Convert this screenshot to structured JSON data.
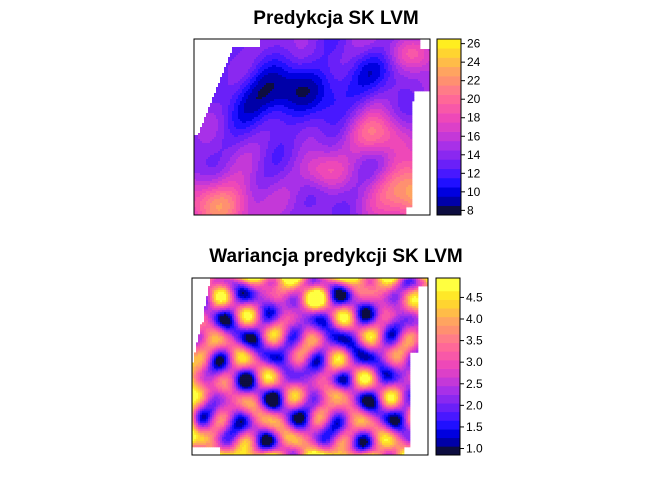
{
  "chart_data": [
    {
      "type": "heatmap",
      "title": "Predykcja SK LVM",
      "xlabel": "",
      "ylabel": "",
      "legend": {
        "placement": "right",
        "ticks": [
          "8",
          "10",
          "12",
          "14",
          "16",
          "18",
          "20",
          "22",
          "24",
          "26"
        ],
        "min": 7.5,
        "max": 26.5,
        "breaks": [
          7.5,
          8.5,
          9.5,
          10.5,
          11.5,
          12.5,
          13.5,
          14.5,
          15.5,
          16.5,
          17.5,
          18.5,
          19.5,
          20.5,
          21.5,
          22.5,
          23.5,
          24.5,
          25.5,
          26.5
        ]
      },
      "palette": [
        "#0d0d40",
        "#0000a8",
        "#0000e0",
        "#2010ff",
        "#4818ff",
        "#6a20f8",
        "#8a28f0",
        "#a830e8",
        "#c438d8",
        "#dc40c8",
        "#ee48b8",
        "#f858a8",
        "#ff6898",
        "#ff7c88",
        "#ff9070",
        "#ffa460",
        "#ffbc48",
        "#ffd430",
        "#ffee20"
      ],
      "na_color": "#ffffff",
      "grid_on": false
    },
    {
      "type": "heatmap",
      "title": "Wariancja predykcji SK LVM",
      "xlabel": "",
      "ylabel": "",
      "legend": {
        "placement": "right",
        "ticks": [
          "1.0",
          "1.5",
          "2.0",
          "2.5",
          "3.0",
          "3.5",
          "4.0",
          "4.5"
        ],
        "min": 0.85,
        "max": 4.95,
        "breaks": [
          0.85,
          1.05,
          1.25,
          1.45,
          1.65,
          1.85,
          2.05,
          2.25,
          2.45,
          2.65,
          2.85,
          3.05,
          3.25,
          3.45,
          3.65,
          3.85,
          4.05,
          4.25,
          4.45,
          4.65,
          4.95
        ]
      },
      "palette": [
        "#0d0d40",
        "#0000a8",
        "#0000e0",
        "#2010ff",
        "#4818ff",
        "#6a20f8",
        "#8a28f0",
        "#a830e8",
        "#c438d8",
        "#dc40c8",
        "#ee48b8",
        "#f858a8",
        "#ff6898",
        "#ff7c88",
        "#ff9070",
        "#ffa460",
        "#ffbc48",
        "#ffd430",
        "#ffe828",
        "#ffff40"
      ],
      "na_color": "#ffffff",
      "grid_on": false
    }
  ]
}
